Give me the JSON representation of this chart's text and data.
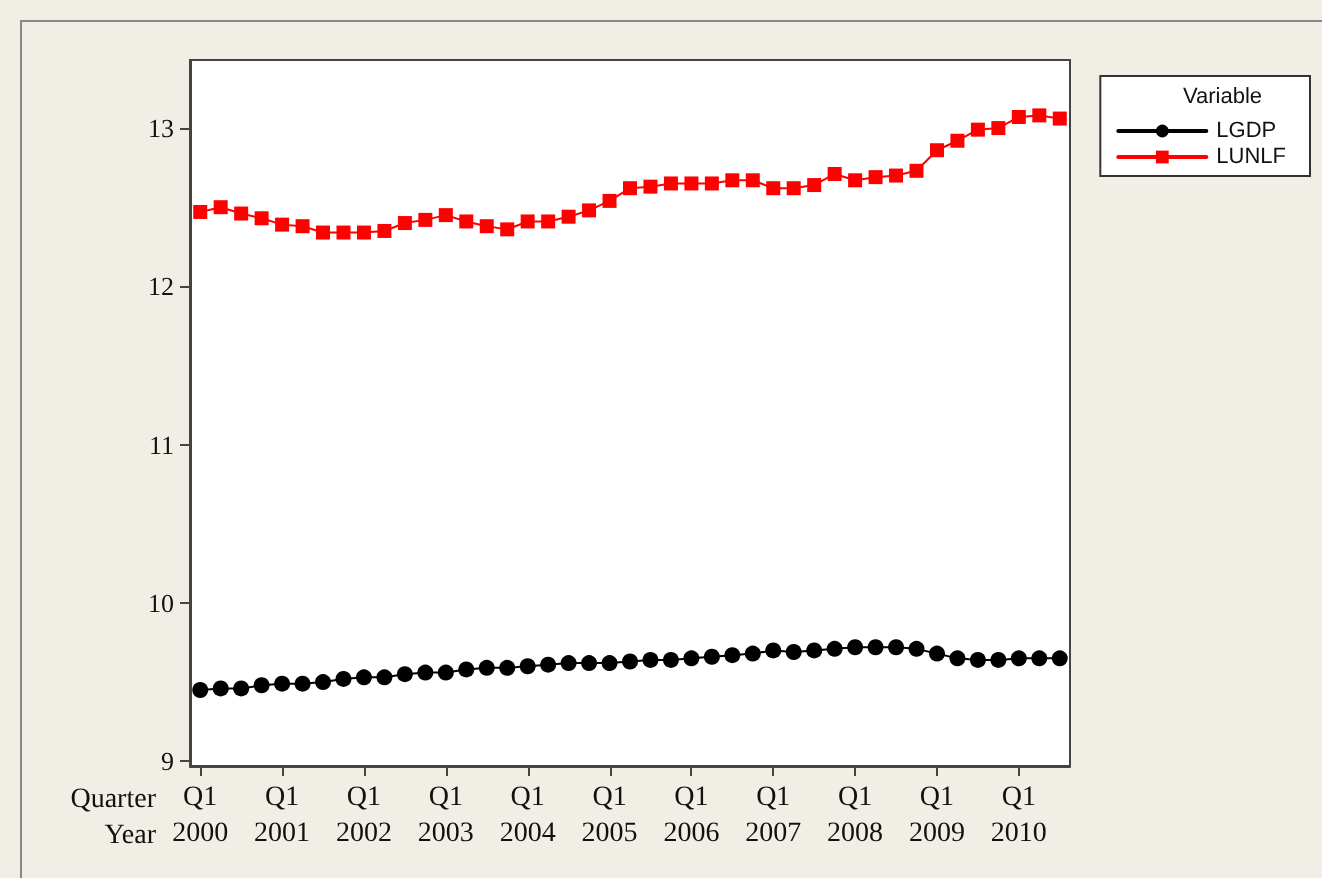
{
  "chart_data": {
    "type": "line",
    "categories": [
      "Q1\n2000",
      null,
      null,
      null,
      "Q1\n2001",
      null,
      null,
      null,
      "Q1\n2002",
      null,
      null,
      null,
      "Q1\n2003",
      null,
      null,
      null,
      "Q1\n2004",
      null,
      null,
      null,
      "Q1\n2005",
      null,
      null,
      null,
      "Q1\n2006",
      null,
      null,
      null,
      "Q1\n2007",
      null,
      null,
      null,
      "Q1\n2008",
      null,
      null,
      null,
      "Q1\n2009",
      null,
      null,
      null,
      "Q1\n2010",
      null,
      null
    ],
    "xlabel": "Quarter\nYear",
    "legend_title": "Variable",
    "series": [
      {
        "name": "LGDP",
        "color": "#000000",
        "marker": "circle",
        "values": [
          9.45,
          9.46,
          9.46,
          9.48,
          9.49,
          9.49,
          9.5,
          9.52,
          9.53,
          9.53,
          9.55,
          9.56,
          9.56,
          9.58,
          9.59,
          9.59,
          9.6,
          9.61,
          9.62,
          9.62,
          9.62,
          9.63,
          9.64,
          9.64,
          9.65,
          9.66,
          9.67,
          9.68,
          9.7,
          9.69,
          9.7,
          9.71,
          9.72,
          9.72,
          9.72,
          9.71,
          9.68,
          9.65,
          9.64,
          9.64,
          9.65,
          9.65,
          9.65
        ]
      },
      {
        "name": "LUNLF",
        "color": "#ff0000",
        "marker": "square",
        "values": [
          12.47,
          12.5,
          12.46,
          12.43,
          12.39,
          12.38,
          12.34,
          12.34,
          12.34,
          12.35,
          12.4,
          12.42,
          12.45,
          12.41,
          12.38,
          12.36,
          12.41,
          12.41,
          12.44,
          12.48,
          12.54,
          12.62,
          12.63,
          12.65,
          12.65,
          12.65,
          12.67,
          12.67,
          12.62,
          12.62,
          12.64,
          12.71,
          12.67,
          12.69,
          12.7,
          12.73,
          12.86,
          12.92,
          12.99,
          13.0,
          13.07,
          13.08,
          13.06
        ]
      }
    ],
    "ylim": [
      8.97,
      13.43
    ],
    "yticks": [
      9,
      10,
      11,
      12,
      13
    ],
    "grid": false,
    "legend": "top right",
    "line_style": "solid"
  }
}
